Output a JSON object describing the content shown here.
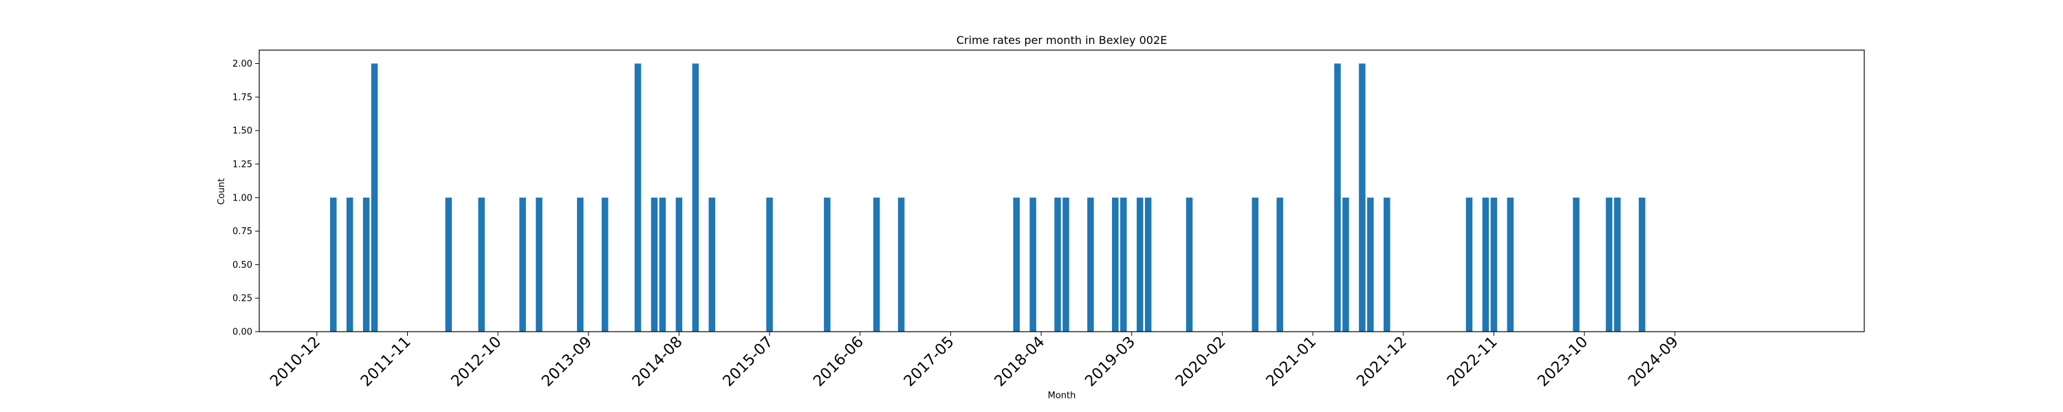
{
  "chart_data": {
    "type": "bar",
    "title": "Crime rates per month in Bexley 002E",
    "xlabel": "Month",
    "ylabel": "Count",
    "ylim": [
      0,
      2.1
    ],
    "yticks": [
      "0.00",
      "0.25",
      "0.50",
      "0.75",
      "1.00",
      "1.25",
      "1.50",
      "1.75",
      "2.00"
    ],
    "xticks": [
      "2010-12",
      "2011-11",
      "2012-10",
      "2013-09",
      "2014-08",
      "2015-07",
      "2016-06",
      "2017-05",
      "2018-04",
      "2019-03",
      "2020-02",
      "2021-01",
      "2021-12",
      "2022-11",
      "2023-10",
      "2024-09"
    ],
    "x_range": [
      "2010-05",
      "2026-08"
    ],
    "grid": false,
    "color": "#1f77b4",
    "categories": [
      "2011-02",
      "2011-04",
      "2011-06",
      "2011-07",
      "2012-04",
      "2012-08",
      "2013-01",
      "2013-03",
      "2013-08",
      "2013-11",
      "2014-03",
      "2014-05",
      "2014-06",
      "2014-08",
      "2014-10",
      "2014-12",
      "2015-07",
      "2016-02",
      "2016-08",
      "2016-11",
      "2018-01",
      "2018-03",
      "2018-06",
      "2018-07",
      "2018-10",
      "2019-01",
      "2019-02",
      "2019-04",
      "2019-05",
      "2019-10",
      "2020-06",
      "2020-09",
      "2021-04",
      "2021-05",
      "2021-07",
      "2021-08",
      "2021-10",
      "2022-08",
      "2022-10",
      "2022-11",
      "2023-01",
      "2023-09",
      "2024-01",
      "2024-02",
      "2024-05"
    ],
    "values": [
      1,
      1,
      1,
      2,
      1,
      1,
      1,
      1,
      1,
      1,
      2,
      1,
      1,
      1,
      2,
      1,
      1,
      1,
      1,
      1,
      1,
      1,
      1,
      1,
      1,
      1,
      1,
      1,
      1,
      1,
      1,
      1,
      2,
      1,
      2,
      1,
      1,
      1,
      1,
      1,
      1,
      1,
      1,
      1,
      1
    ]
  }
}
